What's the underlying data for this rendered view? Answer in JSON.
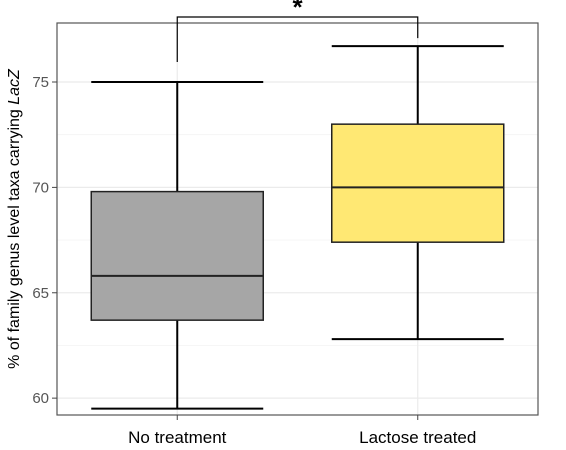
{
  "chart_data": {
    "type": "box",
    "ylabel_main": "% of  family genus level taxa carrying ",
    "ylabel_gene": "LacZ",
    "xlabel": "",
    "ylim": [
      59.2,
      77.8
    ],
    "yticks": [
      60,
      65,
      70,
      75
    ],
    "ytick_labels": [
      "60",
      "65",
      "70",
      "75"
    ],
    "grid": true,
    "categories": [
      "No treatment",
      "Lactose treated"
    ],
    "boxes": [
      {
        "category": "No treatment",
        "min": 59.5,
        "q1": 63.7,
        "median": 65.8,
        "q3": 69.8,
        "max": 75.0,
        "color": "#a6a6a6"
      },
      {
        "category": "Lactose treated",
        "min": 62.8,
        "q1": 67.4,
        "median": 70.0,
        "q3": 73.0,
        "max": 76.7,
        "color": "#ffe873"
      }
    ],
    "significance": {
      "label": "*",
      "between": [
        "No treatment",
        "Lactose treated"
      ]
    },
    "colors": {
      "panel_border": "#555555",
      "grid": "#ebebeb",
      "line": "#000000"
    }
  }
}
